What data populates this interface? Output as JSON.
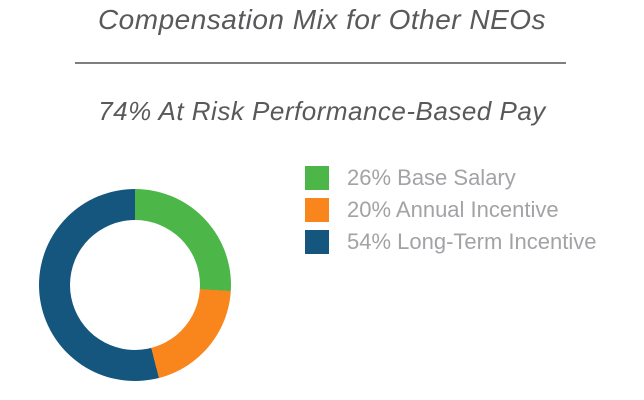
{
  "page": {
    "title": "Compensation Mix for Other NEOs",
    "subtitle": "74% At Risk Performance-Based Pay"
  },
  "colors": {
    "title_text": "#58595B",
    "divider": "#7F7F7F",
    "legend_text": "#A1A3A6",
    "base_salary_green": "#4CB748",
    "annual_incentive_orange": "#F8861D",
    "long_term_incentive_blue": "#15567F",
    "background": "#FFFFFF"
  },
  "chart_data": {
    "type": "pie",
    "subtype": "donut",
    "title": "Compensation Mix for Other NEOs",
    "annotation": "74% At Risk Performance-Based Pay",
    "at_risk_total_pct": 74,
    "categories": [
      "Base Salary",
      "Annual Incentive",
      "Long-Term Incentive"
    ],
    "values": [
      26,
      20,
      54
    ],
    "unit": "percent",
    "slices": [
      {
        "label": "Base Salary",
        "pct": 26,
        "legend_label": "26% Base Salary",
        "color": "#4CB748"
      },
      {
        "label": "Annual Incentive",
        "pct": 20,
        "legend_label": "20% Annual Incentive",
        "color": "#F8861D"
      },
      {
        "label": "Long-Term Incentive",
        "pct": 54,
        "legend_label": "54% Long-Term Incentive",
        "color": "#15567F"
      }
    ],
    "start_angle_deg": 0,
    "direction": "clockwise",
    "inner_radius_ratio": 0.68,
    "legend_position": "right",
    "grid": false
  }
}
